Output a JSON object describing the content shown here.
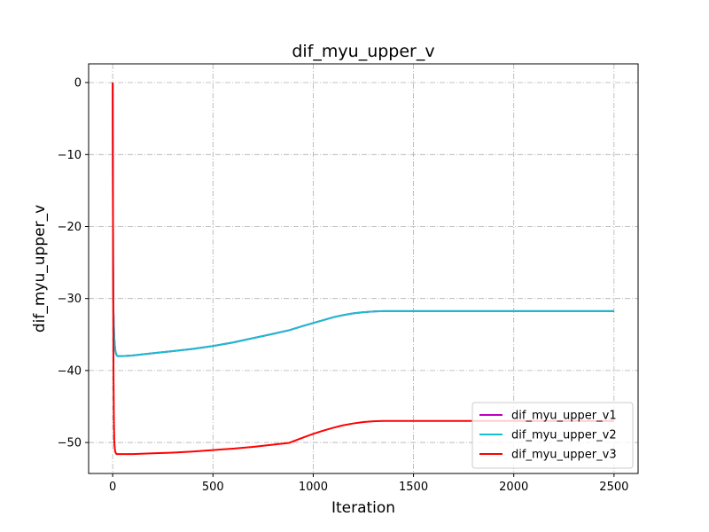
{
  "chart_data": {
    "type": "line",
    "title": "dif_myu_upper_v",
    "xlabel": "Iteration",
    "ylabel": "dif_myu_upper_v",
    "xlim": [
      -120,
      2620
    ],
    "ylim": [
      -54.3,
      2.6
    ],
    "xticks": [
      0,
      500,
      1000,
      1500,
      2000,
      2500
    ],
    "yticks": [
      0,
      -10,
      -20,
      -30,
      -40,
      -50
    ],
    "xtick_labels": [
      "0",
      "500",
      "1000",
      "1500",
      "2000",
      "2500"
    ],
    "ytick_labels": [
      "0",
      "−10",
      "−20",
      "−30",
      "−40",
      "−50"
    ],
    "grid": true,
    "legend_position": "lower-right",
    "series": [
      {
        "name": "dif_myu_upper_v1",
        "color": "#bf00bf",
        "x": [
          0,
          2,
          4,
          8,
          12,
          16,
          20,
          25,
          30,
          50,
          100,
          200,
          300,
          400,
          500,
          600,
          700,
          800,
          880,
          950,
          1000,
          1050,
          1100,
          1150,
          1200,
          1250,
          1300,
          1350,
          1400,
          1500,
          2000,
          2500
        ],
        "y": [
          0,
          -25,
          -32,
          -35.5,
          -37,
          -37.6,
          -37.9,
          -38,
          -38,
          -38,
          -37.9,
          -37.6,
          -37.3,
          -37,
          -36.6,
          -36.1,
          -35.5,
          -34.9,
          -34.4,
          -33.8,
          -33.4,
          -33,
          -32.6,
          -32.3,
          -32.05,
          -31.9,
          -31.8,
          -31.75,
          -31.75,
          -31.75,
          -31.75,
          -31.75
        ]
      },
      {
        "name": "dif_myu_upper_v2",
        "color": "#17becf",
        "x": [
          0,
          2,
          4,
          8,
          12,
          16,
          20,
          25,
          30,
          50,
          100,
          200,
          300,
          400,
          500,
          600,
          700,
          800,
          880,
          950,
          1000,
          1050,
          1100,
          1150,
          1200,
          1250,
          1300,
          1350,
          1400,
          1500,
          2000,
          2500
        ],
        "y": [
          0,
          -25,
          -32,
          -35.5,
          -37,
          -37.6,
          -37.9,
          -38,
          -38,
          -38,
          -37.9,
          -37.6,
          -37.3,
          -37,
          -36.6,
          -36.1,
          -35.5,
          -34.9,
          -34.4,
          -33.8,
          -33.4,
          -33,
          -32.6,
          -32.3,
          -32.05,
          -31.9,
          -31.8,
          -31.75,
          -31.75,
          -31.75,
          -31.75,
          -31.75
        ]
      },
      {
        "name": "dif_myu_upper_v3",
        "color": "#ff0000",
        "x": [
          0,
          2,
          4,
          6,
          8,
          12,
          16,
          20,
          30,
          100,
          200,
          300,
          400,
          500,
          600,
          700,
          800,
          880,
          950,
          1000,
          1050,
          1100,
          1150,
          1200,
          1250,
          1300,
          1350,
          1400,
          1500,
          2000,
          2500
        ],
        "y": [
          0,
          -25,
          -40,
          -47,
          -50,
          -51.2,
          -51.5,
          -51.6,
          -51.6,
          -51.6,
          -51.5,
          -51.4,
          -51.25,
          -51.05,
          -50.85,
          -50.6,
          -50.3,
          -50.05,
          -49.3,
          -48.8,
          -48.35,
          -47.95,
          -47.6,
          -47.35,
          -47.15,
          -47.05,
          -47,
          -47,
          -47,
          -47,
          -47
        ]
      }
    ]
  }
}
